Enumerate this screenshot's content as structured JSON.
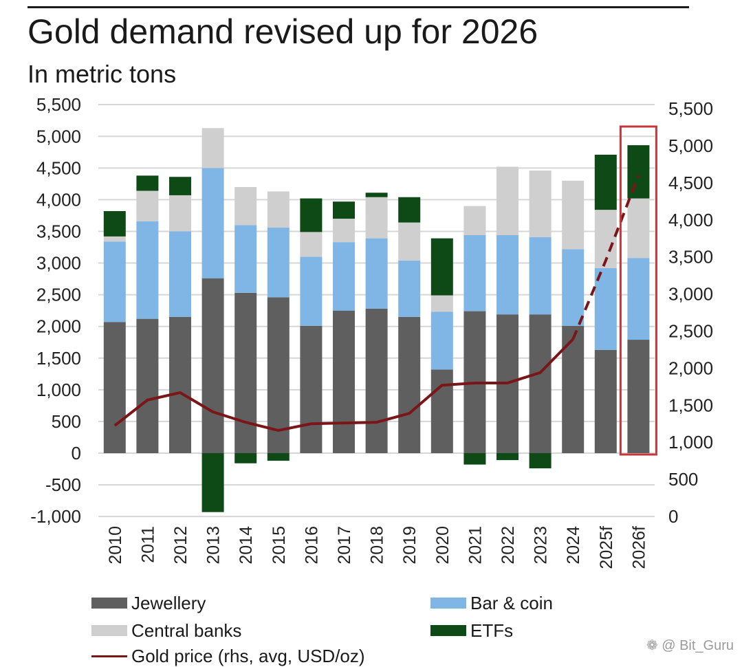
{
  "title": "Gold demand revised up for 2026",
  "subtitle": "In metric tons",
  "watermark": "❁ @ Bit_Guru",
  "legend": {
    "jewellery": "Jewellery",
    "bar_coin": "Bar & coin",
    "central_banks": "Central banks",
    "etfs": "ETFs",
    "gold_price": "Gold price (rhs, avg, USD/oz)"
  },
  "chart_data": {
    "type": "bar",
    "stacked": true,
    "title": "Gold demand revised up for 2026",
    "subtitle": "In metric tons",
    "categories": [
      "2010",
      "2011",
      "2012",
      "2013",
      "2014",
      "2015",
      "2016",
      "2017",
      "2018",
      "2019",
      "2020",
      "2021",
      "2022",
      "2023",
      "2024",
      "2025f",
      "2026f"
    ],
    "series": [
      {
        "name": "Jewellery",
        "color": "#5f5f5f",
        "values": [
          2070,
          2120,
          2150,
          2760,
          2530,
          2460,
          2010,
          2250,
          2280,
          2150,
          1320,
          2240,
          2190,
          2190,
          2010,
          1630,
          1790
        ]
      },
      {
        "name": "Bar & coin",
        "color": "#7fb6e6",
        "values": [
          1270,
          1540,
          1350,
          1740,
          1070,
          1100,
          1090,
          1080,
          1110,
          890,
          910,
          1200,
          1250,
          1220,
          1210,
          1290,
          1290
        ]
      },
      {
        "name": "Central banks",
        "color": "#cfcfcf",
        "values": [
          80,
          480,
          570,
          630,
          600,
          570,
          390,
          370,
          650,
          600,
          260,
          460,
          1080,
          1050,
          1080,
          920,
          940
        ]
      },
      {
        "name": "ETFs",
        "color": "#0e4a16",
        "values": [
          400,
          240,
          290,
          -930,
          -160,
          -120,
          530,
          270,
          70,
          400,
          900,
          -180,
          -110,
          -240,
          0,
          870,
          840
        ]
      }
    ],
    "line_series": {
      "name": "Gold price (rhs, avg, USD/oz)",
      "color": "#7a1618",
      "axis": "right",
      "values": [
        1225,
        1570,
        1670,
        1410,
        1270,
        1160,
        1250,
        1260,
        1270,
        1390,
        1770,
        1800,
        1800,
        1940,
        2390,
        null,
        null
      ],
      "forecast_values": [
        null,
        null,
        null,
        null,
        null,
        null,
        null,
        null,
        null,
        null,
        null,
        null,
        null,
        null,
        2390,
        3450,
        4600
      ],
      "forecast_style": "dashed"
    },
    "y_left": {
      "min": -1000,
      "max": 5500,
      "ticks": [
        -1000,
        -500,
        0,
        500,
        1000,
        1500,
        2000,
        2500,
        3000,
        3500,
        4000,
        4500,
        5000,
        5500
      ],
      "tick_labels": [
        "-1,000",
        "-500",
        "0",
        "500",
        "1,000",
        "1,500",
        "2,000",
        "2,500",
        "3,000",
        "3,500",
        "4,000",
        "4,500",
        "5,000",
        "5,500"
      ]
    },
    "y_right": {
      "min": 0,
      "max": 5500,
      "ticks": [
        0,
        500,
        1000,
        1500,
        2000,
        2500,
        3000,
        3500,
        4000,
        4500,
        5000,
        5500
      ],
      "tick_labels": [
        "0",
        "500",
        "1,000",
        "1,500",
        "2,000",
        "2,500",
        "3,000",
        "3,500",
        "4,000",
        "4,500",
        "5,000",
        "5,500"
      ]
    },
    "grid": true,
    "highlight_category": "2026f",
    "highlight_color": "#c8363a",
    "legend_position": "bottom"
  }
}
